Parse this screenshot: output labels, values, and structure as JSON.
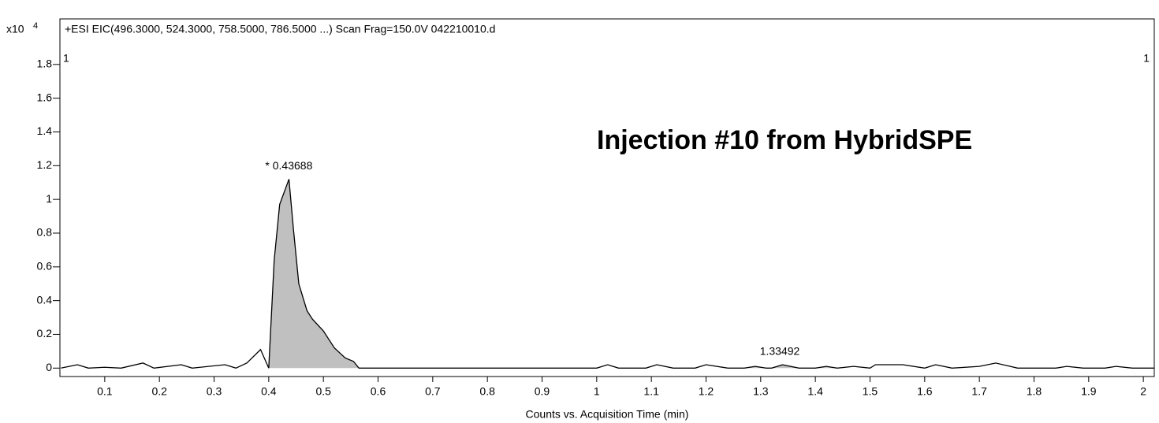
{
  "chart_data": {
    "type": "line",
    "title": "+ESI EIC(496.3000, 524.3000, 758.5000, 786.5000 ...) Scan Frag=150.0V 042210010.d",
    "y_scale_label": "x10",
    "y_scale_power": "4",
    "xlabel": "Counts vs. Acquisition Time (min)",
    "annotation": "Injection #10 from HybridSPE",
    "corner_labels": [
      "1",
      "1"
    ],
    "peak_labels": [
      {
        "x": 0.43688,
        "text": "* 0.43688"
      },
      {
        "x": 1.33492,
        "text": "1.33492"
      }
    ],
    "x": [
      0.02,
      0.05,
      0.07,
      0.1,
      0.13,
      0.17,
      0.19,
      0.24,
      0.26,
      0.32,
      0.34,
      0.36,
      0.385,
      0.4,
      0.41,
      0.42,
      0.437,
      0.445,
      0.455,
      0.47,
      0.48,
      0.5,
      0.52,
      0.54,
      0.555,
      0.565,
      0.6,
      1.0,
      1.02,
      1.04,
      1.09,
      1.11,
      1.14,
      1.18,
      1.2,
      1.24,
      1.27,
      1.29,
      1.31,
      1.32,
      1.34,
      1.37,
      1.4,
      1.42,
      1.44,
      1.47,
      1.5,
      1.51,
      1.56,
      1.6,
      1.62,
      1.65,
      1.7,
      1.73,
      1.77,
      1.84,
      1.86,
      1.89,
      1.93,
      1.95,
      1.98,
      2.02
    ],
    "series": [
      {
        "name": "EIC",
        "color": "#000000",
        "fill": "#c0c0c0",
        "values": [
          0,
          0.02,
          0,
          0.005,
          0,
          0.03,
          0,
          0.02,
          0,
          0.02,
          0,
          0.03,
          0.11,
          0,
          0.64,
          0.97,
          1.12,
          0.83,
          0.5,
          0.34,
          0.29,
          0.22,
          0.12,
          0.06,
          0.04,
          0,
          0,
          0,
          0.02,
          0,
          0,
          0.02,
          0,
          0,
          0.02,
          0,
          0,
          0.01,
          0,
          0,
          0.02,
          0,
          0,
          0.01,
          0,
          0.01,
          0,
          0.02,
          0.02,
          0,
          0.02,
          0,
          0.01,
          0.03,
          0,
          0,
          0.01,
          0,
          0,
          0.01,
          0,
          0
        ]
      }
    ],
    "integrated_regions": [
      [
        0.4,
        0.565
      ],
      [
        1.27,
        1.31
      ],
      [
        1.32,
        1.37
      ],
      [
        1.4,
        1.44
      ]
    ],
    "xlim": [
      0.018,
      2.02
    ],
    "ylim": [
      -0.05,
      2.07
    ],
    "xticks": [
      0.1,
      0.2,
      0.3,
      0.4,
      0.5,
      0.6,
      0.7,
      0.8,
      0.9,
      1,
      1.1,
      1.2,
      1.3,
      1.4,
      1.5,
      1.6,
      1.7,
      1.8,
      1.9,
      2
    ],
    "yticks": [
      0,
      0.2,
      0.4,
      0.6,
      0.8,
      1,
      1.2,
      1.4,
      1.6,
      1.8
    ]
  }
}
